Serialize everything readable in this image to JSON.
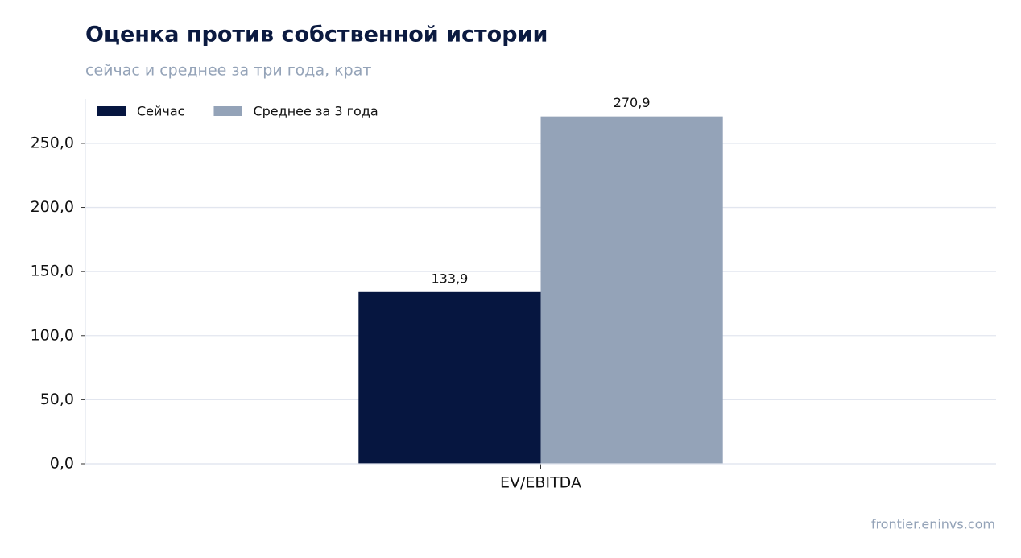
{
  "chart_data": {
    "type": "bar",
    "title": "Оценка против собственной истории",
    "subtitle": "сейчас и среднее за три года, крат",
    "categories": [
      "EV/EBITDA"
    ],
    "series": [
      {
        "name": "Сейчас",
        "color": "#061640",
        "values": [
          133.9
        ],
        "value_labels": [
          "133,9"
        ]
      },
      {
        "name": "Среднее за 3 года",
        "color": "#94a3b8",
        "values": [
          270.9
        ],
        "value_labels": [
          "270,9"
        ]
      }
    ],
    "ylim": [
      0,
      284.5
    ],
    "yticks": [
      {
        "value": 0,
        "label": "0,0"
      },
      {
        "value": 50,
        "label": "50,0"
      },
      {
        "value": 100,
        "label": "100,0"
      },
      {
        "value": 150,
        "label": "150,0"
      },
      {
        "value": 200,
        "label": "200,0"
      },
      {
        "value": 250,
        "label": "250,0"
      }
    ],
    "grid": true,
    "legend": "upper-left",
    "source": "frontier.eninvs.com"
  }
}
